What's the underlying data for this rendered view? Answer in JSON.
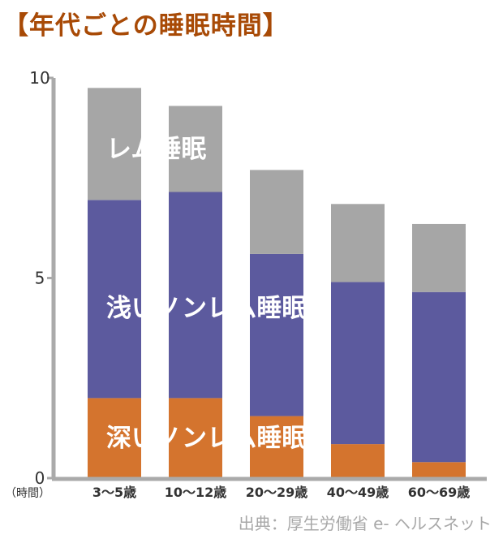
{
  "title": "【年代ごとの睡眠時間】",
  "source": "出典：厚生労働省 e- ヘルスネット",
  "colors": {
    "rem": "#a6a6a6",
    "shallow": "#5c5a9e",
    "deep": "#d4742e",
    "axis": "#aaaaaa",
    "title": "#a84a06"
  },
  "chart_data": {
    "type": "bar",
    "stacked": true,
    "categories": [
      "3～5歳",
      "10～12歳",
      "20～29歳",
      "40～49歳",
      "60～69歳"
    ],
    "ylim": [
      0,
      10
    ],
    "yticks": [
      0,
      5,
      10
    ],
    "ylabel": "（時間）",
    "series": [
      {
        "key": "deep",
        "name": "深いノンレム睡眠",
        "values": [
          2.0,
          2.0,
          1.55,
          0.85,
          0.4
        ]
      },
      {
        "key": "shallow",
        "name": "浅いノンレム睡眠",
        "values": [
          4.95,
          5.15,
          4.05,
          4.05,
          4.25
        ]
      },
      {
        "key": "rem",
        "name": "レム睡眠",
        "values": [
          2.8,
          2.15,
          2.1,
          1.95,
          1.7
        ]
      }
    ]
  }
}
